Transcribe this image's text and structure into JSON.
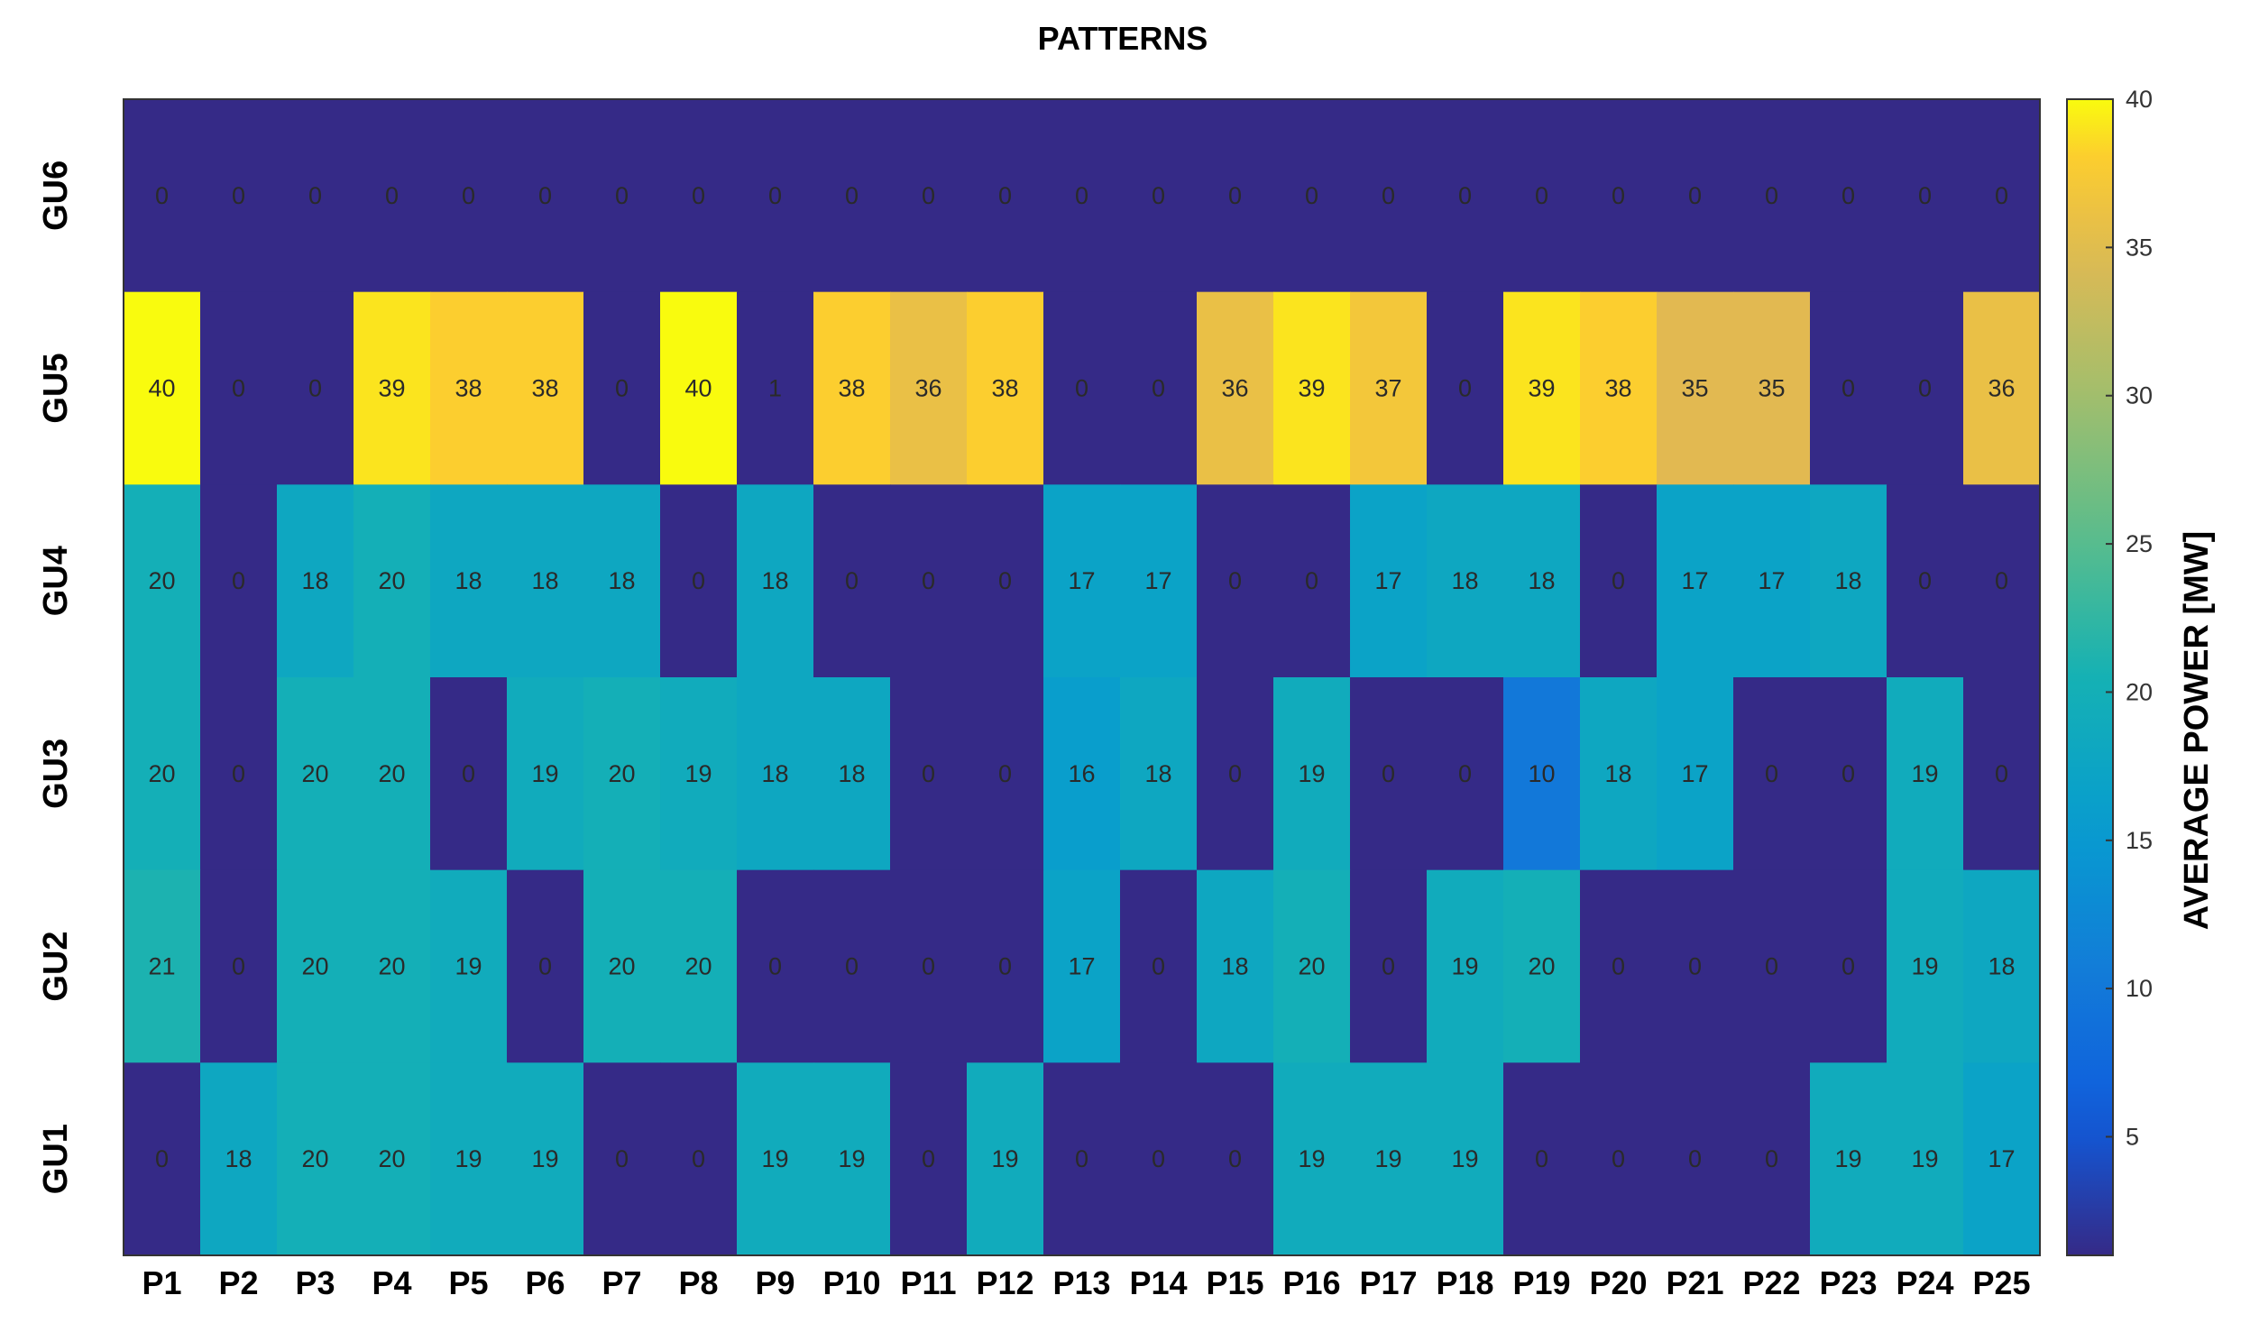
{
  "chart_data": {
    "type": "heatmap",
    "title": "PATTERNS",
    "x": [
      "P1",
      "P2",
      "P3",
      "P4",
      "P5",
      "P6",
      "P7",
      "P8",
      "P9",
      "P10",
      "P11",
      "P12",
      "P13",
      "P14",
      "P15",
      "P16",
      "P17",
      "P18",
      "P19",
      "P20",
      "P21",
      "P22",
      "P23",
      "P24",
      "P25"
    ],
    "y": [
      "GU6",
      "GU5",
      "GU4",
      "GU3",
      "GU2",
      "GU1"
    ],
    "values": [
      [
        0,
        0,
        0,
        0,
        0,
        0,
        0,
        0,
        0,
        0,
        0,
        0,
        0,
        0,
        0,
        0,
        0,
        0,
        0,
        0,
        0,
        0,
        0,
        0,
        0
      ],
      [
        40,
        0,
        0,
        39,
        38,
        38,
        0,
        40,
        1,
        38,
        36,
        38,
        0,
        0,
        36,
        39,
        37,
        0,
        39,
        38,
        35,
        35,
        0,
        0,
        36
      ],
      [
        20,
        0,
        18,
        20,
        18,
        18,
        18,
        0,
        18,
        0,
        0,
        0,
        17,
        17,
        0,
        0,
        17,
        18,
        18,
        0,
        17,
        17,
        18,
        0,
        0
      ],
      [
        20,
        0,
        20,
        20,
        0,
        19,
        20,
        19,
        18,
        18,
        0,
        0,
        16,
        18,
        0,
        19,
        0,
        0,
        10,
        18,
        17,
        0,
        0,
        19,
        0
      ],
      [
        21,
        0,
        20,
        20,
        19,
        0,
        20,
        20,
        0,
        0,
        0,
        0,
        17,
        0,
        18,
        20,
        0,
        19,
        20,
        0,
        0,
        0,
        0,
        19,
        18
      ],
      [
        0,
        18,
        20,
        20,
        19,
        19,
        0,
        0,
        19,
        19,
        0,
        19,
        0,
        0,
        0,
        19,
        19,
        19,
        0,
        0,
        0,
        0,
        19,
        19,
        17
      ]
    ],
    "colorbar": {
      "label": "AVERAGE POWER [MW]",
      "range": [
        1,
        40
      ],
      "ticks": [
        5,
        10,
        15,
        20,
        25,
        30,
        35,
        40
      ],
      "colormap": "parula"
    },
    "grid": false
  }
}
